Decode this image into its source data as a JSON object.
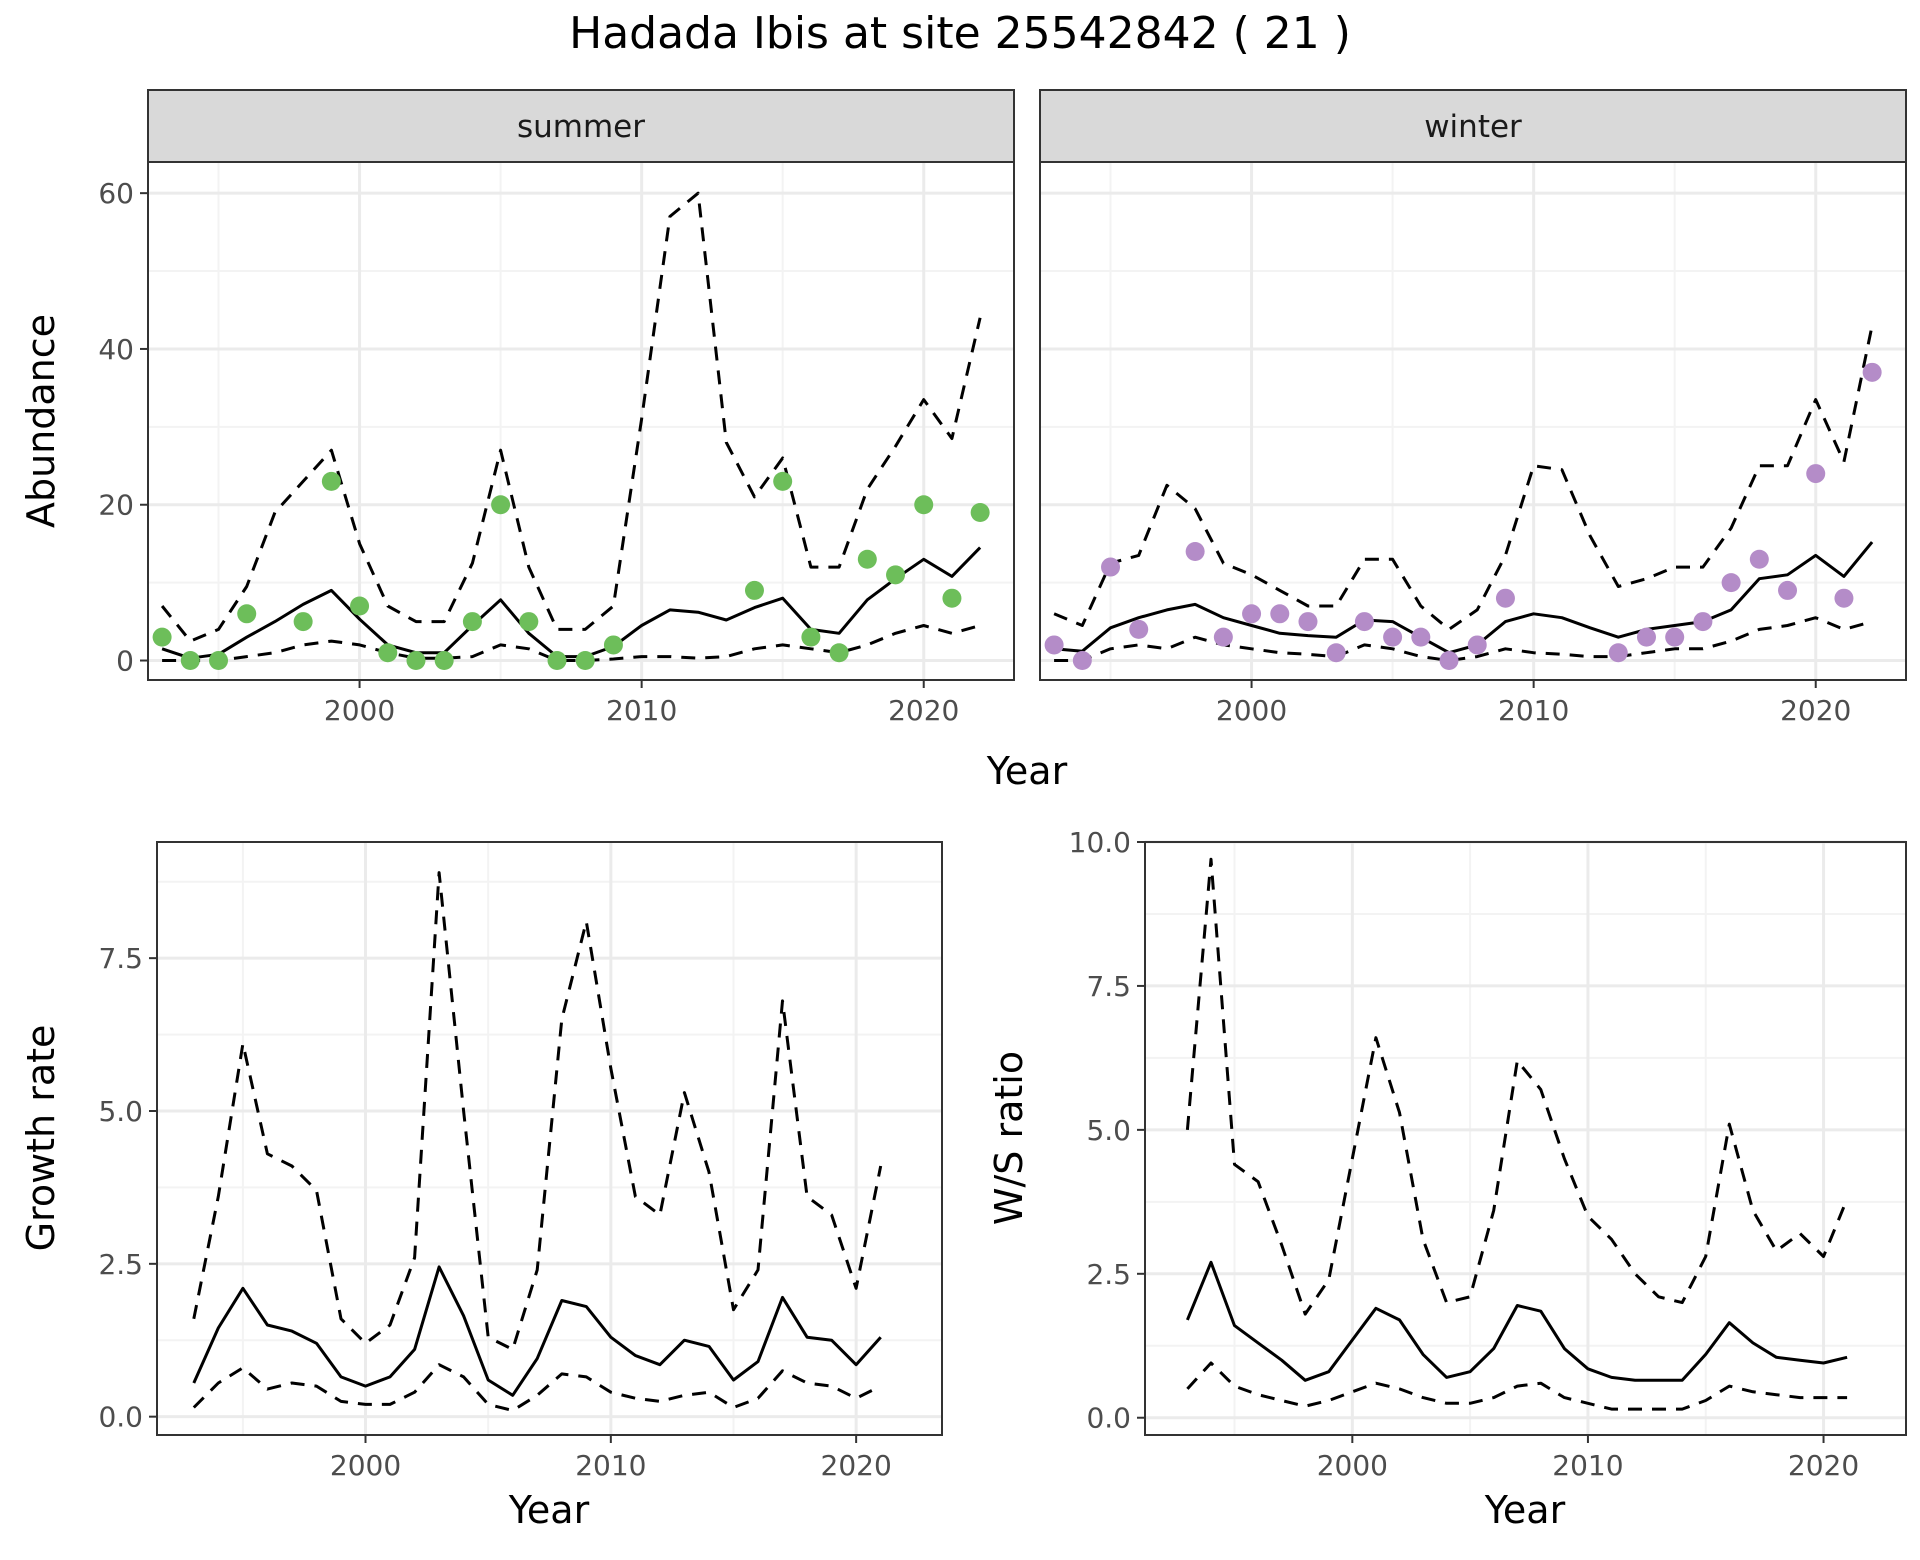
{
  "title": "Hadada Ibis at site 25542842 ( 21 )",
  "colors": {
    "summer_points": "#6DBE5A",
    "winter_points": "#B48CC8",
    "line": "#000000"
  },
  "chart_data": [
    {
      "type": "line",
      "panel": "summer",
      "title": "summer",
      "xlabel": "Year",
      "ylabel": "Abundance",
      "xlim": [
        1992.5,
        2023.2
      ],
      "ylim": [
        -2.5,
        64
      ],
      "xticks": [
        2000,
        2010,
        2020
      ],
      "yticks": [
        0,
        20,
        40,
        60
      ],
      "x": [
        1993,
        1994,
        1995,
        1996,
        1997,
        1998,
        1999,
        2000,
        2001,
        2002,
        2003,
        2004,
        2005,
        2006,
        2007,
        2008,
        2009,
        2010,
        2011,
        2012,
        2013,
        2014,
        2015,
        2016,
        2017,
        2018,
        2019,
        2020,
        2021,
        2022
      ],
      "series": [
        {
          "name": "mean",
          "style": "solid",
          "values": [
            1.5,
            0.3,
            0.8,
            3.0,
            5.0,
            7.2,
            9.0,
            5.3,
            2.0,
            1.0,
            1.0,
            4.5,
            7.8,
            3.5,
            0.5,
            0.5,
            1.8,
            4.5,
            6.5,
            6.2,
            5.2,
            6.8,
            8.0,
            4.0,
            3.5,
            7.8,
            10.5,
            13.0,
            10.8,
            14.5
          ]
        },
        {
          "name": "upper",
          "style": "dashed",
          "values": [
            7.0,
            2.5,
            4.0,
            9.5,
            19.0,
            23.0,
            27.0,
            15.0,
            7.0,
            5.0,
            5.0,
            12.5,
            27.0,
            12.0,
            4.0,
            4.0,
            7.0,
            31.0,
            57.0,
            60.0,
            28.0,
            21.0,
            26.0,
            12.0,
            12.0,
            22.0,
            27.5,
            33.5,
            28.5,
            44.0
          ]
        },
        {
          "name": "lower",
          "style": "dashed",
          "values": [
            0,
            0,
            0,
            0.5,
            1.0,
            2.0,
            2.5,
            2.0,
            1.0,
            0.3,
            0.3,
            0.5,
            2.0,
            1.5,
            0,
            0,
            0.2,
            0.5,
            0.5,
            0.3,
            0.5,
            1.5,
            2.0,
            1.5,
            1.0,
            2.0,
            3.5,
            4.5,
            3.5,
            4.5
          ]
        }
      ],
      "points": {
        "x": [
          1993,
          1994,
          1995,
          1996,
          1998,
          1999,
          2000,
          2001,
          2002,
          2003,
          2004,
          2005,
          2006,
          2007,
          2008,
          2009,
          2014,
          2015,
          2016,
          2017,
          2018,
          2019,
          2020,
          2021,
          2022
        ],
        "y": [
          3,
          0,
          0,
          6,
          5,
          23,
          7,
          1,
          0,
          0,
          5,
          20,
          5,
          0,
          0,
          2,
          9,
          23,
          3,
          1,
          13,
          11,
          20,
          8,
          19
        ]
      }
    },
    {
      "type": "line",
      "panel": "winter",
      "title": "winter",
      "xlabel": "Year",
      "ylabel": "Abundance",
      "xlim": [
        1992.5,
        2023.2
      ],
      "ylim": [
        -2.5,
        64
      ],
      "xticks": [
        2000,
        2010,
        2020
      ],
      "yticks": [
        0,
        20,
        40,
        60
      ],
      "x": [
        1993,
        1994,
        1995,
        1996,
        1997,
        1998,
        1999,
        2000,
        2001,
        2002,
        2003,
        2004,
        2005,
        2006,
        2007,
        2008,
        2009,
        2010,
        2011,
        2012,
        2013,
        2014,
        2015,
        2016,
        2017,
        2018,
        2019,
        2020,
        2021,
        2022
      ],
      "series": [
        {
          "name": "mean",
          "style": "solid",
          "values": [
            1.5,
            1.2,
            4.2,
            5.5,
            6.5,
            7.2,
            5.5,
            4.5,
            3.5,
            3.2,
            3.0,
            5.2,
            5.0,
            3.0,
            1.0,
            2.0,
            5.0,
            6.0,
            5.5,
            4.2,
            3.0,
            4.0,
            4.5,
            5.0,
            6.5,
            10.5,
            11.0,
            13.5,
            10.8,
            15.2
          ]
        },
        {
          "name": "upper",
          "style": "dashed",
          "values": [
            6.0,
            4.5,
            12.5,
            13.5,
            22.5,
            19.5,
            12.5,
            11.0,
            9.0,
            7.0,
            7.0,
            13.0,
            13.0,
            7.0,
            4.0,
            6.5,
            13.5,
            25.0,
            24.5,
            16.0,
            9.5,
            10.5,
            12.0,
            12.0,
            17.0,
            25.0,
            25.0,
            33.5,
            25.5,
            43.0
          ]
        },
        {
          "name": "lower",
          "style": "dashed",
          "values": [
            0,
            0,
            1.5,
            2.0,
            1.5,
            3.0,
            2.0,
            1.5,
            1.0,
            0.8,
            0.5,
            2.0,
            1.5,
            0.5,
            0,
            0.5,
            1.5,
            1.0,
            0.8,
            0.5,
            0.5,
            1.0,
            1.5,
            1.5,
            2.5,
            4.0,
            4.5,
            5.5,
            4.0,
            5.0
          ]
        }
      ],
      "points": {
        "x": [
          1993,
          1994,
          1995,
          1996,
          1998,
          1999,
          2000,
          2001,
          2002,
          2003,
          2004,
          2005,
          2006,
          2007,
          2008,
          2009,
          2013,
          2014,
          2015,
          2016,
          2017,
          2018,
          2019,
          2020,
          2021,
          2022
        ],
        "y": [
          2,
          0,
          12,
          4,
          14,
          3,
          6,
          6,
          5,
          1,
          5,
          3,
          3,
          0,
          2,
          8,
          1,
          3,
          3,
          5,
          10,
          13,
          9,
          24,
          8,
          37
        ]
      }
    },
    {
      "type": "line",
      "panel": "growth",
      "title": "",
      "xlabel": "Year",
      "ylabel": "Growth rate",
      "xlim": [
        1991.5,
        2023.5
      ],
      "ylim": [
        -0.3,
        9.4
      ],
      "xticks": [
        2000,
        2010,
        2020
      ],
      "yticks": [
        0.0,
        2.5,
        5.0,
        7.5
      ],
      "ytick_labels": [
        "0.0",
        "2.5",
        "5.0",
        "7.5"
      ],
      "x": [
        1993,
        1994,
        1995,
        1996,
        1997,
        1998,
        1999,
        2000,
        2001,
        2002,
        2003,
        2004,
        2005,
        2006,
        2007,
        2008,
        2009,
        2010,
        2011,
        2012,
        2013,
        2014,
        2015,
        2016,
        2017,
        2018,
        2019,
        2020,
        2021
      ],
      "series": [
        {
          "name": "mean",
          "style": "solid",
          "values": [
            0.55,
            1.45,
            2.1,
            1.5,
            1.4,
            1.2,
            0.65,
            0.5,
            0.65,
            1.1,
            2.45,
            1.65,
            0.6,
            0.35,
            0.95,
            1.9,
            1.8,
            1.3,
            1.0,
            0.85,
            1.25,
            1.15,
            0.6,
            0.9,
            1.95,
            1.3,
            1.25,
            0.85,
            1.3
          ]
        },
        {
          "name": "upper",
          "style": "dashed",
          "values": [
            1.6,
            3.6,
            6.1,
            4.3,
            4.1,
            3.7,
            1.6,
            1.2,
            1.5,
            2.6,
            8.9,
            5.0,
            1.3,
            1.1,
            2.4,
            6.5,
            8.1,
            5.7,
            3.6,
            3.3,
            5.3,
            4.0,
            1.75,
            2.4,
            6.8,
            3.6,
            3.3,
            2.1,
            4.1
          ]
        },
        {
          "name": "lower",
          "style": "dashed",
          "values": [
            0.15,
            0.55,
            0.8,
            0.45,
            0.55,
            0.5,
            0.25,
            0.2,
            0.2,
            0.4,
            0.85,
            0.65,
            0.2,
            0.1,
            0.35,
            0.7,
            0.65,
            0.4,
            0.3,
            0.25,
            0.35,
            0.4,
            0.15,
            0.3,
            0.75,
            0.55,
            0.5,
            0.3,
            0.5
          ]
        }
      ]
    },
    {
      "type": "line",
      "panel": "ws_ratio",
      "title": "",
      "xlabel": "Year",
      "ylabel": "W/S ratio",
      "xlim": [
        1991.2,
        2023.5
      ],
      "ylim": [
        -0.3,
        10.0
      ],
      "xticks": [
        2000,
        2010,
        2020
      ],
      "yticks": [
        0.0,
        2.5,
        5.0,
        7.5,
        10.0
      ],
      "ytick_labels": [
        "0.0",
        "2.5",
        "5.0",
        "7.5",
        "10.0"
      ],
      "x": [
        1993,
        1994,
        1995,
        1996,
        1997,
        1998,
        1999,
        2000,
        2001,
        2002,
        2003,
        2004,
        2005,
        2006,
        2007,
        2008,
        2009,
        2010,
        2011,
        2012,
        2013,
        2014,
        2015,
        2016,
        2017,
        2018,
        2019,
        2020,
        2021
      ],
      "series": [
        {
          "name": "mean",
          "style": "solid",
          "values": [
            1.7,
            2.7,
            1.6,
            1.3,
            1.0,
            0.65,
            0.8,
            1.35,
            1.9,
            1.7,
            1.1,
            0.7,
            0.8,
            1.2,
            1.95,
            1.85,
            1.2,
            0.85,
            0.7,
            0.65,
            0.65,
            0.65,
            1.1,
            1.65,
            1.3,
            1.05,
            1.0,
            0.95,
            1.05
          ]
        },
        {
          "name": "upper",
          "style": "dashed",
          "values": [
            5.0,
            9.7,
            4.4,
            4.1,
            3.0,
            1.8,
            2.4,
            4.5,
            6.6,
            5.3,
            3.1,
            2.0,
            2.1,
            3.6,
            6.2,
            5.7,
            4.5,
            3.5,
            3.1,
            2.5,
            2.1,
            2.0,
            2.8,
            5.1,
            3.6,
            2.9,
            3.2,
            2.8,
            3.8
          ]
        },
        {
          "name": "lower",
          "style": "dashed",
          "values": [
            0.5,
            0.95,
            0.55,
            0.4,
            0.3,
            0.2,
            0.3,
            0.45,
            0.6,
            0.5,
            0.35,
            0.25,
            0.25,
            0.35,
            0.55,
            0.6,
            0.35,
            0.25,
            0.15,
            0.15,
            0.15,
            0.15,
            0.3,
            0.55,
            0.45,
            0.4,
            0.35,
            0.35,
            0.35
          ]
        }
      ]
    }
  ]
}
